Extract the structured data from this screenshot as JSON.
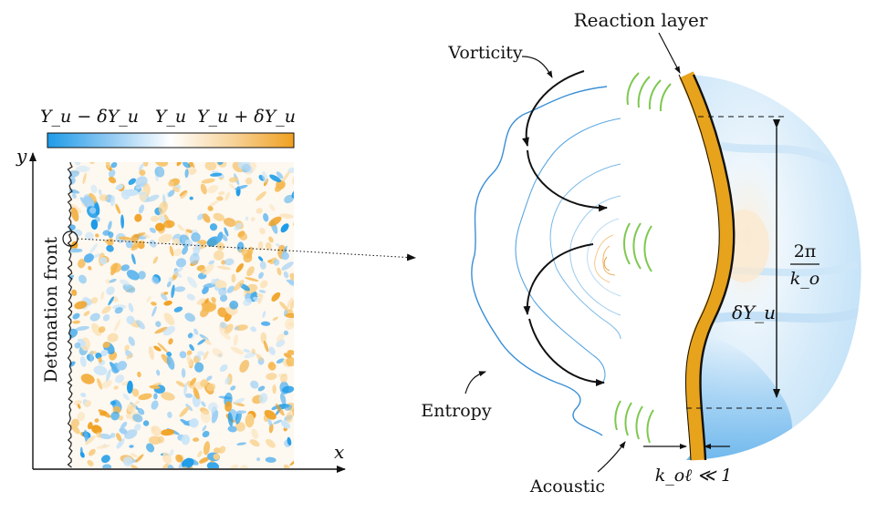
{
  "colorbar": {
    "label_low": "Y_u − δY_u",
    "label_mid": "Y_u",
    "label_high": "Y_u + δY_u",
    "colors": {
      "low": "#2196f3",
      "mid": "#ffffff",
      "high": "#f0a020"
    }
  },
  "left_panel": {
    "y_axis": "y",
    "x_axis": "x",
    "front_label": "Detonation front"
  },
  "right_panel": {
    "reaction_layer": "Reaction layer",
    "vorticity": "Vorticity",
    "entropy": "Entropy",
    "acoustic": "Acoustic",
    "wavelength_num": "2π",
    "wavelength_den": "k_o",
    "amplitude": "δY_u",
    "condition": "k_oℓ ≪ 1",
    "colors": {
      "reaction": "#e8a31c",
      "acoustic": "#7ec850",
      "entropy": "#3a8fd6",
      "field_light": "#d8ecfa",
      "field_dark": "#6fb8ef"
    }
  }
}
